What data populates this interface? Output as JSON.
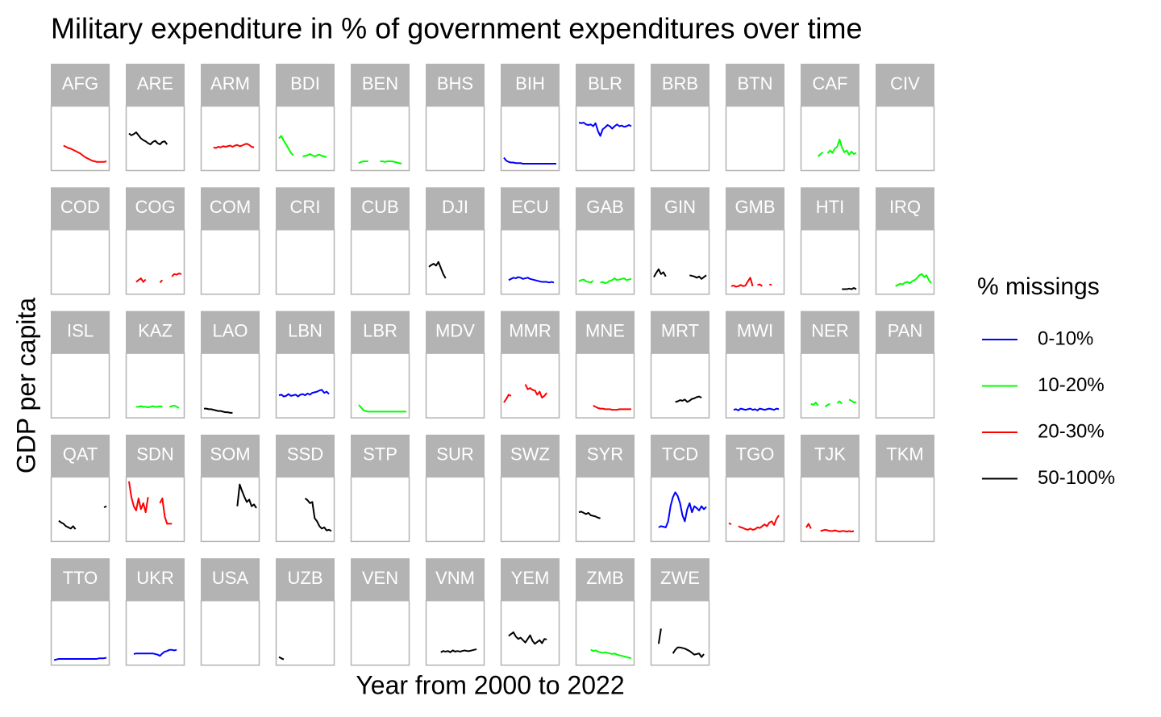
{
  "chart_data": {
    "type": "line",
    "title": "Military expenditure in % of government expenditures over time",
    "x_label": "Year from 2000 to 2022",
    "y_label": "GDP per capita",
    "legend_title": "% missings",
    "legend": [
      {
        "name": "0-10%",
        "color": "#0000ff"
      },
      {
        "name": "10-20%",
        "color": "#00ff00"
      },
      {
        "name": "20-30%",
        "color": "#ff0000"
      },
      {
        "name": "50-100%",
        "color": "#000000"
      }
    ],
    "x": [
      2000,
      2001,
      2002,
      2003,
      2004,
      2005,
      2006,
      2007,
      2008,
      2009,
      2010,
      2011,
      2012,
      2013,
      2014,
      2015,
      2016,
      2017,
      2018,
      2019,
      2020,
      2021,
      2022
    ],
    "xlim": [
      2000,
      2022
    ],
    "ylim": [
      0,
      100
    ],
    "panels": [
      {
        "name": "AFG",
        "color": "#ff0000",
        "values": [
          null,
          null,
          null,
          null,
          38,
          36,
          34,
          33,
          31,
          29,
          27,
          25,
          22,
          19,
          17,
          15,
          13,
          12,
          11,
          11,
          11,
          11,
          12
        ]
      },
      {
        "name": "ARE",
        "color": "#000000",
        "values": [
          58,
          55,
          57,
          60,
          55,
          50,
          47,
          45,
          42,
          40,
          44,
          46,
          42,
          40,
          44,
          45,
          40,
          null,
          null,
          null,
          null,
          null,
          null
        ]
      },
      {
        "name": "ARM",
        "color": "#ff0000",
        "values": [
          null,
          null,
          null,
          null,
          35,
          34,
          36,
          35,
          37,
          36,
          37,
          38,
          36,
          38,
          39,
          37,
          38,
          40,
          41,
          39,
          36,
          35,
          null
        ]
      },
      {
        "name": "BDI",
        "color": "#00ff00",
        "values": [
          50,
          54,
          46,
          40,
          33,
          26,
          22,
          null,
          null,
          null,
          20,
          21,
          22,
          24,
          22,
          20,
          22,
          23,
          21,
          20,
          19,
          null,
          null
        ]
      },
      {
        "name": "BEN",
        "color": "#00ff00",
        "values": [
          null,
          null,
          9,
          11,
          12,
          12,
          12,
          null,
          null,
          null,
          null,
          12,
          12,
          11,
          12,
          12,
          12,
          11,
          10,
          9,
          8,
          null,
          null
        ]
      },
      {
        "name": "BHS"
      },
      {
        "name": "BIH",
        "color": "#0000ff",
        "values": [
          18,
          13,
          11,
          10,
          10,
          9,
          9,
          9,
          8,
          8,
          8,
          8,
          8,
          8,
          8,
          8,
          8,
          8,
          8,
          8,
          8,
          8,
          8
        ]
      },
      {
        "name": "BLR",
        "color": "#0000ff",
        "values": [
          76,
          75,
          76,
          73,
          72,
          73,
          70,
          75,
          62,
          54,
          65,
          68,
          72,
          70,
          66,
          70,
          73,
          70,
          71,
          69,
          70,
          72,
          70
        ]
      },
      {
        "name": "BRB"
      },
      {
        "name": "BTN"
      },
      {
        "name": "CAF",
        "color": "#00ff00",
        "values": [
          null,
          null,
          null,
          null,
          null,
          null,
          20,
          24,
          27,
          null,
          25,
          30,
          26,
          33,
          36,
          48,
          35,
          27,
          30,
          23,
          28,
          24,
          26
        ]
      },
      {
        "name": "CIV"
      },
      {
        "name": "COD"
      },
      {
        "name": "COG",
        "color": "#ff0000",
        "values": [
          null,
          null,
          null,
          17,
          20,
          23,
          17,
          21,
          null,
          null,
          null,
          null,
          null,
          16,
          20,
          null,
          null,
          null,
          26,
          30,
          29,
          31,
          30
        ]
      },
      {
        "name": "COM"
      },
      {
        "name": "CRI"
      },
      {
        "name": "CUB"
      },
      {
        "name": "DJI",
        "color": "#000000",
        "values": [
          42,
          45,
          47,
          44,
          50,
          40,
          30,
          23,
          null,
          null,
          null,
          null,
          null,
          null,
          null,
          null,
          null,
          null,
          null,
          null,
          null,
          null,
          null
        ]
      },
      {
        "name": "ECU",
        "color": "#0000ff",
        "values": [
          null,
          null,
          20,
          22,
          24,
          23,
          25,
          24,
          22,
          23,
          24,
          22,
          21,
          20,
          19,
          18,
          17,
          17,
          17,
          16,
          17,
          16,
          null
        ]
      },
      {
        "name": "GAB",
        "color": "#00ff00",
        "values": [
          18,
          20,
          21,
          18,
          17,
          16,
          19,
          null,
          null,
          16,
          17,
          15,
          16,
          19,
          20,
          23,
          20,
          21,
          22,
          23,
          20,
          21,
          22
        ]
      },
      {
        "name": "GIN",
        "color": "#000000",
        "values": [
          25,
          32,
          38,
          30,
          33,
          26,
          null,
          null,
          null,
          null,
          null,
          null,
          null,
          null,
          null,
          28,
          27,
          26,
          24,
          26,
          22,
          25,
          28
        ]
      },
      {
        "name": "GMB",
        "color": "#ff0000",
        "values": [
          null,
          10,
          11,
          9,
          10,
          12,
          10,
          11,
          18,
          24,
          10,
          null,
          12,
          13,
          10,
          null,
          null,
          13,
          12,
          null,
          null,
          null,
          null
        ]
      },
      {
        "name": "HTI",
        "color": "#000000",
        "values": [
          null,
          null,
          null,
          null,
          null,
          null,
          null,
          null,
          null,
          null,
          null,
          null,
          null,
          null,
          null,
          null,
          5,
          5,
          5,
          6,
          5,
          7,
          5
        ]
      },
      {
        "name": "IRQ",
        "color": "#00ff00",
        "values": [
          null,
          null,
          null,
          null,
          null,
          null,
          null,
          10,
          12,
          14,
          13,
          16,
          17,
          15,
          18,
          20,
          23,
          28,
          30,
          25,
          28,
          20,
          15
        ]
      },
      {
        "name": "ISL"
      },
      {
        "name": "KAZ",
        "color": "#00ff00",
        "values": [
          null,
          null,
          null,
          15,
          15,
          16,
          15,
          15,
          14,
          15,
          16,
          15,
          15,
          16,
          15,
          null,
          null,
          15,
          16,
          17,
          15,
          13,
          null
        ]
      },
      {
        "name": "LAO",
        "color": "#000000",
        "values": [
          12,
          12,
          11,
          11,
          10,
          9,
          8,
          8,
          7,
          6,
          6,
          5,
          5,
          null,
          null,
          null,
          null,
          null,
          null,
          null,
          null,
          null,
          null
        ]
      },
      {
        "name": "LBN",
        "color": "#0000ff",
        "values": [
          34,
          35,
          32,
          33,
          36,
          33,
          34,
          35,
          32,
          35,
          36,
          34,
          37,
          35,
          38,
          39,
          40,
          42,
          43,
          38,
          40,
          36,
          null
        ]
      },
      {
        "name": "LBR",
        "color": "#00ff00",
        "values": [
          null,
          null,
          18,
          14,
          9,
          8,
          7,
          7,
          7,
          7,
          7,
          7,
          7,
          7,
          7,
          7,
          7,
          7,
          7,
          7,
          7,
          7,
          7
        ]
      },
      {
        "name": "MDV"
      },
      {
        "name": "MMR",
        "color": "#ff0000",
        "values": [
          22,
          28,
          35,
          33,
          null,
          null,
          null,
          null,
          null,
          52,
          44,
          46,
          43,
          42,
          35,
          40,
          30,
          33,
          38,
          null,
          null,
          null,
          null
        ]
      },
      {
        "name": "MNE",
        "color": "#ff0000",
        "values": [
          null,
          null,
          null,
          null,
          null,
          null,
          17,
          15,
          13,
          12,
          12,
          11,
          11,
          11,
          10,
          10,
          10,
          11,
          11,
          11,
          11,
          11,
          11
        ]
      },
      {
        "name": "MRT",
        "color": "#000000",
        "values": [
          null,
          null,
          25,
          null,
          27,
          null,
          null,
          28,
          null,
          23,
          24,
          26,
          25,
          27,
          23,
          25,
          28,
          29,
          31,
          32,
          30,
          null,
          null
        ]
      },
      {
        "name": "MWI",
        "color": "#0000ff",
        "values": [
          null,
          null,
          10,
          11,
          9,
          12,
          11,
          10,
          11,
          12,
          10,
          11,
          9,
          12,
          11,
          10,
          11,
          12,
          11,
          10,
          12,
          11,
          null
        ]
      },
      {
        "name": "NER",
        "color": "#00ff00",
        "values": [
          null,
          null,
          null,
          20,
          18,
          22,
          17,
          null,
          null,
          15,
          18,
          20,
          null,
          null,
          21,
          24,
          20,
          null,
          null,
          27,
          25,
          22,
          23
        ]
      },
      {
        "name": "PAN"
      },
      {
        "name": "QAT",
        "color": "#000000",
        "values": [
          null,
          null,
          31,
          28,
          26,
          22,
          20,
          18,
          22,
          17,
          null,
          null,
          null,
          null,
          null,
          null,
          null,
          null,
          null,
          null,
          null,
          53,
          55
        ]
      },
      {
        "name": "SDN",
        "color": "#ff0000",
        "values": [
          96,
          70,
          55,
          48,
          68,
          50,
          60,
          45,
          70,
          null,
          null,
          null,
          null,
          60,
          68,
          38,
          26,
          26,
          26,
          null,
          null,
          null,
          null
        ]
      },
      {
        "name": "SOM",
        "color": "#000000",
        "values": [
          null,
          null,
          null,
          null,
          null,
          null,
          null,
          null,
          null,
          null,
          null,
          null,
          null,
          null,
          55,
          91,
          80,
          70,
          62,
          66,
          55,
          58,
          52
        ]
      },
      {
        "name": "SSD",
        "color": "#000000",
        "values": [
          null,
          null,
          null,
          null,
          null,
          null,
          null,
          null,
          null,
          null,
          null,
          68,
          65,
          60,
          62,
          35,
          30,
          22,
          18,
          20,
          15,
          16,
          14
        ]
      },
      {
        "name": "STP"
      },
      {
        "name": "SUR"
      },
      {
        "name": "SWZ"
      },
      {
        "name": "SYR",
        "color": "#000000",
        "values": [
          45,
          46,
          44,
          42,
          44,
          40,
          39,
          38,
          36,
          35,
          null,
          null,
          null,
          null,
          null,
          null,
          null,
          null,
          null,
          null,
          null,
          null,
          null
        ]
      },
      {
        "name": "TCD",
        "color": "#0000ff",
        "values": [
          null,
          null,
          20,
          22,
          21,
          20,
          30,
          55,
          70,
          78,
          72,
          60,
          40,
          30,
          50,
          60,
          45,
          55,
          52,
          48,
          55,
          50,
          54
        ]
      },
      {
        "name": "TGO",
        "color": "#ff0000",
        "values": [
          27,
          25,
          null,
          null,
          22,
          20,
          19,
          17,
          16,
          18,
          16,
          17,
          20,
          19,
          22,
          25,
          22,
          28,
          30,
          24,
          34,
          40,
          null
        ]
      },
      {
        "name": "TJK",
        "color": "#ff0000",
        "values": [
          null,
          20,
          26,
          18,
          null,
          null,
          null,
          14,
          15,
          16,
          15,
          14,
          14,
          15,
          14,
          13,
          14,
          14,
          13,
          14,
          13,
          14,
          null
        ]
      },
      {
        "name": "TKM"
      },
      {
        "name": "TTO",
        "color": "#0000ff",
        "values": [
          5,
          6,
          7,
          7,
          7,
          7,
          7,
          7,
          7,
          7,
          7,
          7,
          7,
          7,
          7,
          7,
          7,
          7,
          7,
          8,
          8,
          8,
          9
        ]
      },
      {
        "name": "UKR",
        "color": "#0000ff",
        "values": [
          null,
          null,
          15,
          16,
          16,
          16,
          16,
          16,
          16,
          16,
          16,
          15,
          14,
          12,
          16,
          19,
          20,
          22,
          22,
          21,
          22,
          null,
          null
        ]
      },
      {
        "name": "USA"
      },
      {
        "name": "UZB",
        "color": "#000000",
        "values": [
          10,
          8,
          6,
          null,
          null,
          null,
          null,
          null,
          null,
          null,
          null,
          null,
          null,
          null,
          null,
          null,
          null,
          null,
          null,
          null,
          null,
          null,
          null
        ]
      },
      {
        "name": "VEN"
      },
      {
        "name": "VNM",
        "color": "#000000",
        "values": [
          null,
          null,
          null,
          null,
          null,
          18,
          20,
          19,
          20,
          18,
          21,
          19,
          20,
          19,
          20,
          21,
          20,
          20,
          21,
          22,
          23,
          null,
          null
        ]
      },
      {
        "name": "YEM",
        "color": "#000000",
        "values": [
          null,
          null,
          45,
          48,
          51,
          44,
          40,
          42,
          38,
          34,
          40,
          46,
          37,
          32,
          35,
          38,
          33,
          40,
          39,
          null,
          null,
          null,
          null
        ]
      },
      {
        "name": "ZMB",
        "color": "#00ff00",
        "values": [
          null,
          null,
          null,
          null,
          null,
          22,
          20,
          21,
          19,
          18,
          17,
          18,
          17,
          16,
          15,
          16,
          14,
          13,
          12,
          11,
          10,
          9,
          8
        ]
      },
      {
        "name": "ZWE",
        "color": "#000000",
        "values": [
          null,
          null,
          32,
          57,
          null,
          null,
          null,
          null,
          16,
          22,
          26,
          26,
          25,
          24,
          22,
          20,
          17,
          14,
          15,
          16,
          10,
          15,
          null
        ]
      }
    ]
  }
}
